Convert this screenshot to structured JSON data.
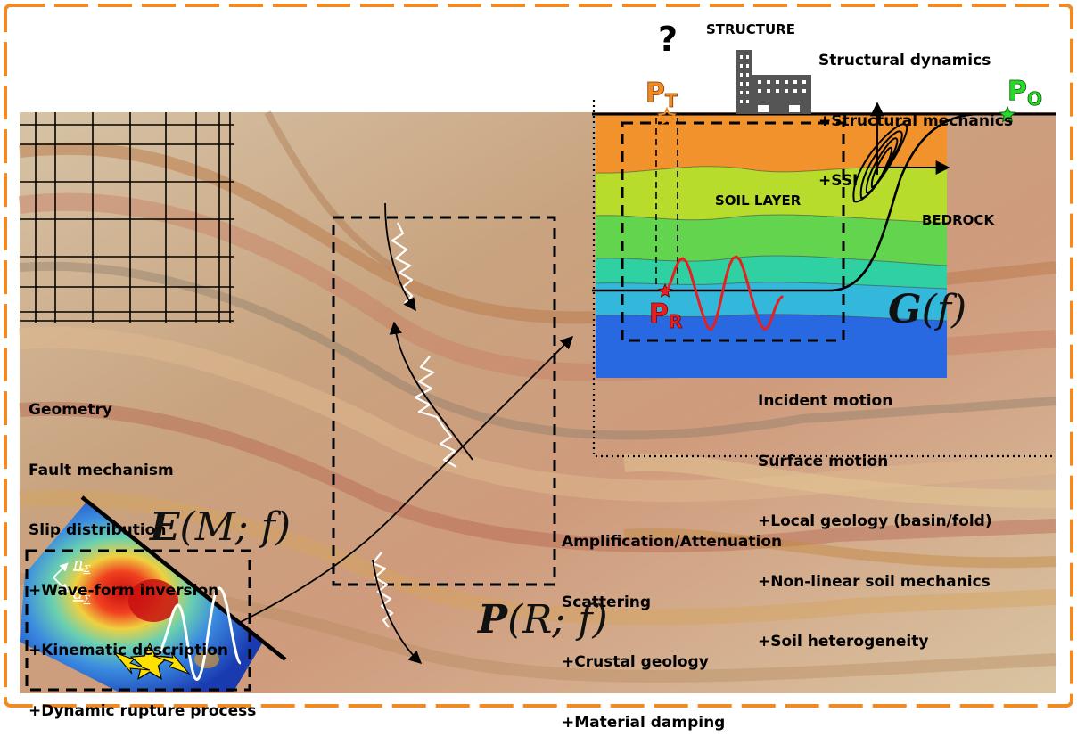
{
  "question_mark": "?",
  "structure_label": "STRUCTURE",
  "structure_notes": [
    "Structural dynamics",
    "+Structural mechanics",
    "+SSI"
  ],
  "soil_layer_label": "SOIL LAYER",
  "bedrock_label": "BEDROCK",
  "points": {
    "transfer": {
      "main": "P",
      "sub": "T",
      "color": "#f08a24"
    },
    "output": {
      "main": "P",
      "sub": "O",
      "color": "#2ad82a"
    },
    "rock": {
      "main": "P",
      "sub": "R",
      "color": "#e62020"
    }
  },
  "site_notes": [
    "Incident motion",
    "Surface motion",
    "+Local geology (basin/fold)",
    "+Non-linear soil mechanics",
    "+Soil heterogeneity"
  ],
  "path_notes": [
    "Amplification/Attenuation",
    "Scattering",
    "+Crustal geology",
    "+Material damping"
  ],
  "source_notes": [
    "Geometry",
    "Fault mechanism",
    "Slip distribution",
    "+Wave-form inversion",
    "+Kinematic description",
    "+Dynamic rupture process"
  ],
  "site_term": {
    "symbol": "G",
    "args": "(f)"
  },
  "source_term": {
    "symbol": "E",
    "args": "(M; f)"
  },
  "path_term": {
    "symbol": "P",
    "args": "(R; f)"
  },
  "normal_vector_label": "n",
  "slip_vector_label": "d",
  "vector_subscript": "Σ",
  "colors": {
    "frame_dash": "#f08a24",
    "soil_layers": [
      "#f2922c",
      "#b8dc2c",
      "#63d44e",
      "#2fd0a2",
      "#33b8dc",
      "#2868e0"
    ]
  }
}
